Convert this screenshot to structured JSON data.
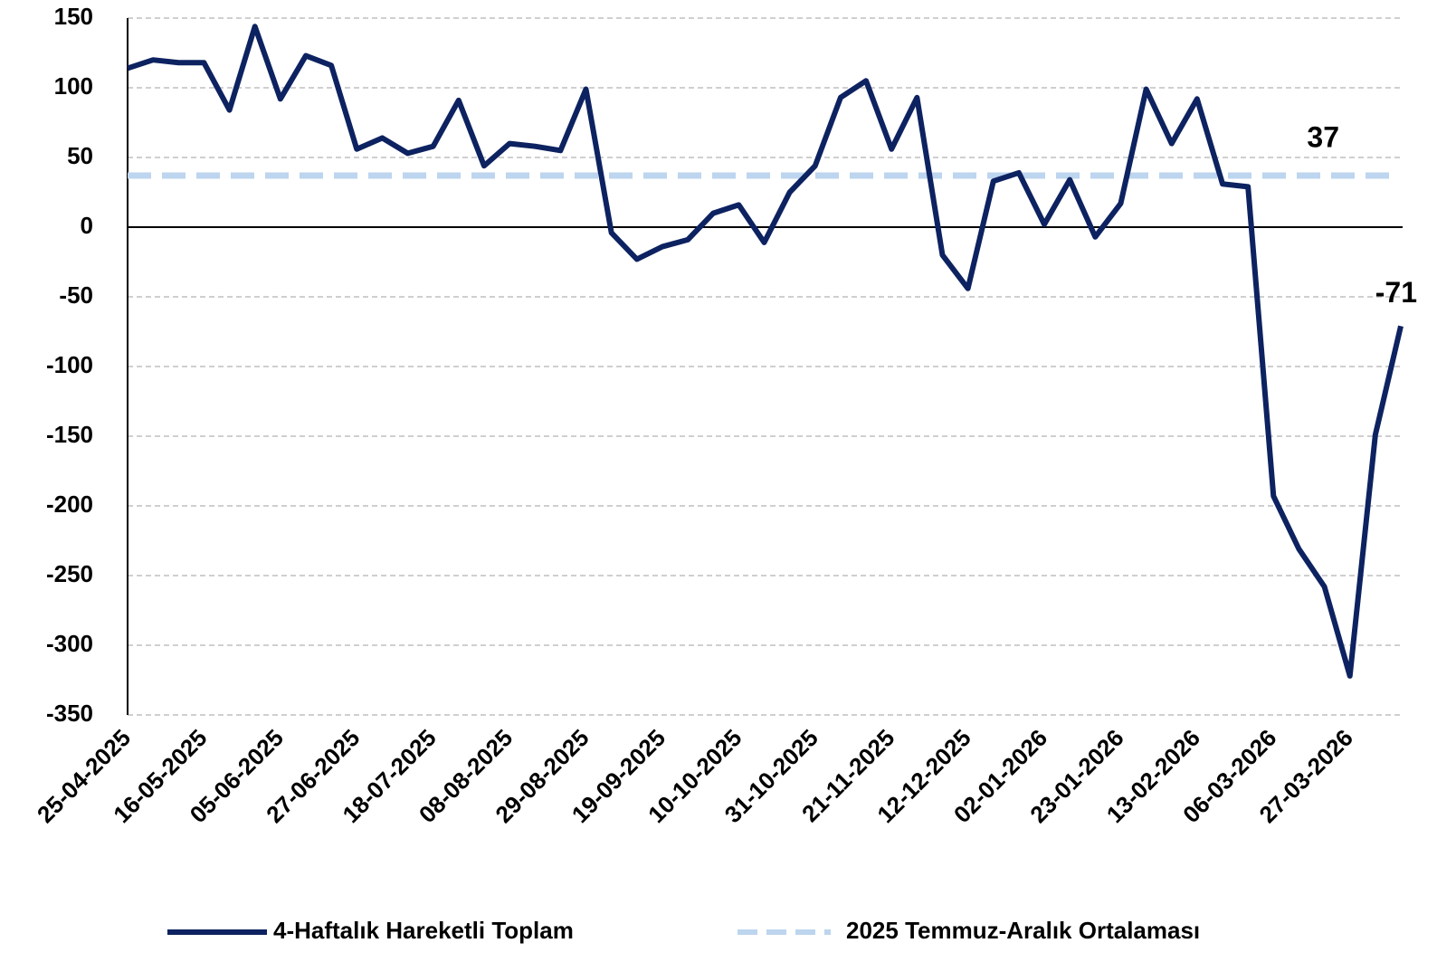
{
  "chart_data": {
    "type": "line",
    "categories": [
      "25-04-2025",
      null,
      null,
      "16-05-2025",
      null,
      null,
      "05-06-2025",
      null,
      null,
      "27-06-2025",
      null,
      null,
      "18-07-2025",
      null,
      null,
      "08-08-2025",
      null,
      null,
      "29-08-2025",
      null,
      null,
      "19-09-2025",
      null,
      null,
      "10-10-2025",
      null,
      null,
      "31-10-2025",
      null,
      null,
      "21-11-2025",
      null,
      null,
      "12-12-2025",
      null,
      null,
      "02-01-2026",
      null,
      null,
      "23-01-2026",
      null,
      null,
      "13-02-2026",
      null,
      null,
      "06-03-2026",
      null,
      null,
      "27-03-2026",
      null,
      null
    ],
    "series": [
      {
        "name": "4-Haftalık Hareketli Toplam",
        "color": "#0d2260",
        "values": [
          114,
          120,
          118,
          118,
          84,
          144,
          92,
          123,
          116,
          56,
          64,
          53,
          58,
          91,
          44,
          60,
          58,
          55,
          99,
          -4,
          -23,
          -14,
          -9,
          10,
          16,
          -11,
          25,
          44,
          93,
          105,
          56,
          93,
          -20,
          -44,
          33,
          39,
          2,
          34,
          -7,
          17,
          99,
          60,
          92,
          31,
          29,
          -193,
          -231,
          -258,
          -322,
          -149,
          -71
        ]
      }
    ],
    "reference_lines": [
      {
        "name": "2025 Temmuz-Aralık Ortalaması",
        "color": "#bdd5ee",
        "label_color": "#8eaadb",
        "value": 37
      }
    ],
    "ylim": [
      -350,
      150
    ],
    "yticks": [
      -350,
      -300,
      -250,
      -200,
      -150,
      -100,
      -50,
      0,
      50,
      100,
      150
    ],
    "grid": true
  }
}
